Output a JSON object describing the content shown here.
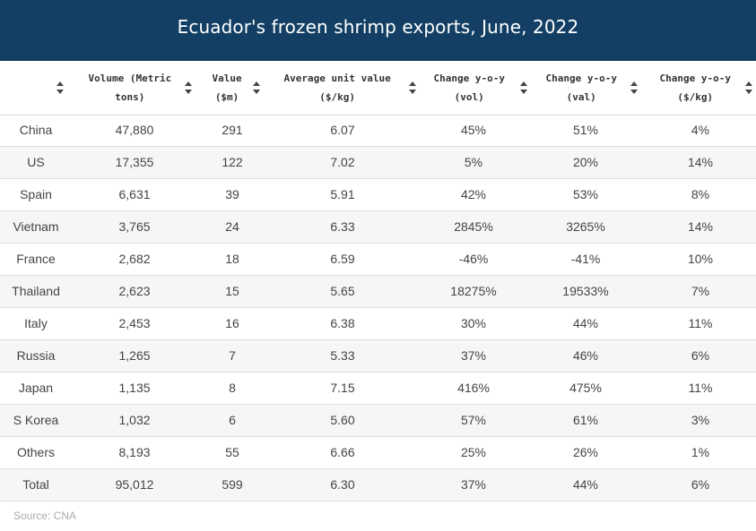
{
  "title": "Ecuador's frozen shrimp exports, June, 2022",
  "columns": [
    {
      "key": "country",
      "label": ""
    },
    {
      "key": "volume",
      "label": "Volume (Metric\ntons)"
    },
    {
      "key": "value",
      "label": "Value\n($m)"
    },
    {
      "key": "unit",
      "label": "Average unit value\n($/kg)"
    },
    {
      "key": "vol_chg",
      "label": "Change y-o-y\n(vol)"
    },
    {
      "key": "val_chg",
      "label": "Change y-o-y\n(val)"
    },
    {
      "key": "kg_chg",
      "label": "Change y-o-y\n($/kg)"
    }
  ],
  "rows": [
    [
      "China",
      "47,880",
      "291",
      "6.07",
      "45%",
      "51%",
      "4%"
    ],
    [
      "US",
      "17,355",
      "122",
      "7.02",
      "5%",
      "20%",
      "14%"
    ],
    [
      "Spain",
      "6,631",
      "39",
      "5.91",
      "42%",
      "53%",
      "8%"
    ],
    [
      "Vietnam",
      "3,765",
      "24",
      "6.33",
      "2845%",
      "3265%",
      "14%"
    ],
    [
      "France",
      "2,682",
      "18",
      "6.59",
      "-46%",
      "-41%",
      "10%"
    ],
    [
      "Thailand",
      "2,623",
      "15",
      "5.65",
      "18275%",
      "19533%",
      "7%"
    ],
    [
      "Italy",
      "2,453",
      "16",
      "6.38",
      "30%",
      "44%",
      "11%"
    ],
    [
      "Russia",
      "1,265",
      "7",
      "5.33",
      "37%",
      "46%",
      "6%"
    ],
    [
      "Japan",
      "1,135",
      "8",
      "7.15",
      "416%",
      "475%",
      "11%"
    ],
    [
      "S Korea",
      "1,032",
      "6",
      "5.60",
      "57%",
      "61%",
      "3%"
    ],
    [
      "Others",
      "8,193",
      "55",
      "6.66",
      "25%",
      "26%",
      "1%"
    ],
    [
      "Total",
      "95,012",
      "599",
      "6.30",
      "37%",
      "44%",
      "6%"
    ]
  ],
  "source": "Source: CNA",
  "chart_data": {
    "type": "table",
    "title": "Ecuador's frozen shrimp exports, June, 2022",
    "columns": [
      "",
      "Volume (Metric tons)",
      "Value ($m)",
      "Average unit value ($/kg)",
      "Change y-o-y (vol)",
      "Change y-o-y (val)",
      "Change y-o-y ($/kg)"
    ],
    "rows": [
      [
        "China",
        47880,
        291,
        6.07,
        "45%",
        "51%",
        "4%"
      ],
      [
        "US",
        17355,
        122,
        7.02,
        "5%",
        "20%",
        "14%"
      ],
      [
        "Spain",
        6631,
        39,
        5.91,
        "42%",
        "53%",
        "8%"
      ],
      [
        "Vietnam",
        3765,
        24,
        6.33,
        "2845%",
        "3265%",
        "14%"
      ],
      [
        "France",
        2682,
        18,
        6.59,
        "-46%",
        "-41%",
        "10%"
      ],
      [
        "Thailand",
        2623,
        15,
        5.65,
        "18275%",
        "19533%",
        "7%"
      ],
      [
        "Italy",
        2453,
        16,
        6.38,
        "30%",
        "44%",
        "11%"
      ],
      [
        "Russia",
        1265,
        7,
        5.33,
        "37%",
        "46%",
        "6%"
      ],
      [
        "Japan",
        1135,
        8,
        7.15,
        "416%",
        "475%",
        "11%"
      ],
      [
        "S Korea",
        1032,
        6,
        5.6,
        "57%",
        "61%",
        "3%"
      ],
      [
        "Others",
        8193,
        55,
        6.66,
        "25%",
        "26%",
        "1%"
      ],
      [
        "Total",
        95012,
        599,
        6.3,
        "37%",
        "44%",
        "6%"
      ]
    ]
  }
}
